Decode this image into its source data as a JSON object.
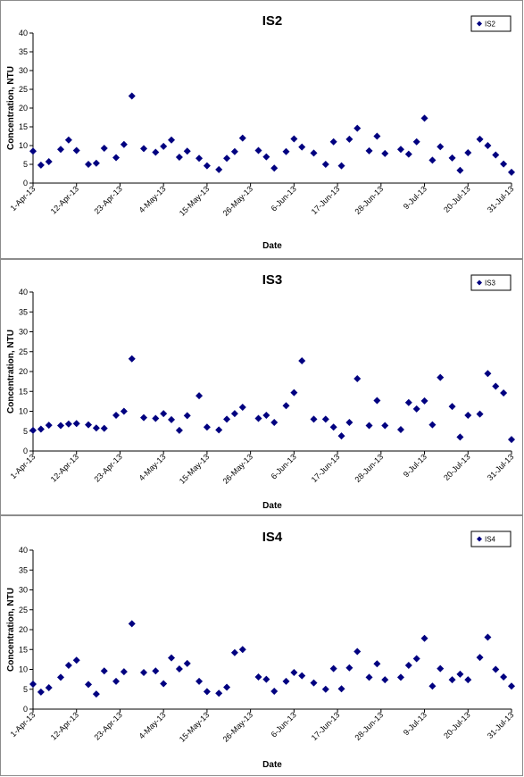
{
  "chart_data": [
    {
      "type": "scatter",
      "title": "IS2",
      "xlabel": "Date",
      "ylabel": "Concentration, NTU",
      "ylim": [
        0,
        40
      ],
      "yticks": [
        "0",
        "5",
        "10",
        "15",
        "20",
        "25",
        "30",
        "35",
        "40"
      ],
      "xticks": [
        "1-Apr-13",
        "12-Apr-13",
        "23-Apr-13",
        "4-May-13",
        "15-May-13",
        "26-May-13",
        "6-Jun-13",
        "17-Jun-13",
        "28-Jun-13",
        "9-Jul-13",
        "20-Jul-13",
        "31-Jul-13"
      ],
      "xlim": [
        "2013-04-01",
        "2013-07-31"
      ],
      "grid": false,
      "legend_position": "top-right",
      "series": [
        {
          "name": "IS2",
          "color": "#000080",
          "points": [
            [
              "2013-04-01",
              8.5
            ],
            [
              "2013-04-03",
              4.8
            ],
            [
              "2013-04-05",
              5.7
            ],
            [
              "2013-04-08",
              9.0
            ],
            [
              "2013-04-10",
              11.5
            ],
            [
              "2013-04-12",
              8.7
            ],
            [
              "2013-04-15",
              5.0
            ],
            [
              "2013-04-17",
              5.3
            ],
            [
              "2013-04-19",
              9.3
            ],
            [
              "2013-04-22",
              6.8
            ],
            [
              "2013-04-24",
              10.3
            ],
            [
              "2013-04-26",
              23.2
            ],
            [
              "2013-04-29",
              9.2
            ],
            [
              "2013-05-02",
              8.2
            ],
            [
              "2013-05-04",
              9.8
            ],
            [
              "2013-05-06",
              11.5
            ],
            [
              "2013-05-08",
              6.9
            ],
            [
              "2013-05-10",
              8.5
            ],
            [
              "2013-05-13",
              6.6
            ],
            [
              "2013-05-15",
              4.6
            ],
            [
              "2013-05-18",
              3.6
            ],
            [
              "2013-05-20",
              6.6
            ],
            [
              "2013-05-22",
              8.4
            ],
            [
              "2013-05-24",
              12.0
            ],
            [
              "2013-05-28",
              8.7
            ],
            [
              "2013-05-30",
              7.0
            ],
            [
              "2013-06-01",
              4.0
            ],
            [
              "2013-06-04",
              8.4
            ],
            [
              "2013-06-06",
              11.8
            ],
            [
              "2013-06-08",
              9.6
            ],
            [
              "2013-06-11",
              8.0
            ],
            [
              "2013-06-14",
              5.0
            ],
            [
              "2013-06-16",
              11.0
            ],
            [
              "2013-06-18",
              4.6
            ],
            [
              "2013-06-20",
              11.7
            ],
            [
              "2013-06-22",
              14.6
            ],
            [
              "2013-06-25",
              8.6
            ],
            [
              "2013-06-27",
              12.5
            ],
            [
              "2013-06-29",
              7.9
            ],
            [
              "2013-07-03",
              9.0
            ],
            [
              "2013-07-05",
              7.7
            ],
            [
              "2013-07-07",
              11.0
            ],
            [
              "2013-07-09",
              17.3
            ],
            [
              "2013-07-11",
              6.1
            ],
            [
              "2013-07-13",
              9.7
            ],
            [
              "2013-07-16",
              6.7
            ],
            [
              "2013-07-18",
              3.4
            ],
            [
              "2013-07-20",
              8.1
            ],
            [
              "2013-07-23",
              11.7
            ],
            [
              "2013-07-25",
              10.0
            ],
            [
              "2013-07-27",
              7.5
            ],
            [
              "2013-07-29",
              5.1
            ],
            [
              "2013-07-31",
              2.9
            ]
          ]
        }
      ]
    },
    {
      "type": "scatter",
      "title": "IS3",
      "xlabel": "Date",
      "ylabel": "Concentration, NTU",
      "ylim": [
        0,
        40
      ],
      "yticks": [
        "0",
        "5",
        "10",
        "15",
        "20",
        "25",
        "30",
        "35",
        "40"
      ],
      "xticks": [
        "1-Apr-13",
        "12-Apr-13",
        "23-Apr-13",
        "4-May-13",
        "15-May-13",
        "26-May-13",
        "6-Jun-13",
        "17-Jun-13",
        "28-Jun-13",
        "9-Jul-13",
        "20-Jul-13",
        "31-Jul-13"
      ],
      "xlim": [
        "2013-04-01",
        "2013-07-31"
      ],
      "grid": false,
      "legend_position": "top-right",
      "series": [
        {
          "name": "IS3",
          "color": "#000080",
          "points": [
            [
              "2013-04-01",
              5.2
            ],
            [
              "2013-04-03",
              5.5
            ],
            [
              "2013-04-05",
              6.5
            ],
            [
              "2013-04-08",
              6.4
            ],
            [
              "2013-04-10",
              6.8
            ],
            [
              "2013-04-12",
              6.9
            ],
            [
              "2013-04-15",
              6.6
            ],
            [
              "2013-04-17",
              5.8
            ],
            [
              "2013-04-19",
              5.7
            ],
            [
              "2013-04-22",
              9.0
            ],
            [
              "2013-04-24",
              10.0
            ],
            [
              "2013-04-26",
              23.2
            ],
            [
              "2013-04-29",
              8.4
            ],
            [
              "2013-05-02",
              8.2
            ],
            [
              "2013-05-04",
              9.4
            ],
            [
              "2013-05-06",
              7.9
            ],
            [
              "2013-05-08",
              5.2
            ],
            [
              "2013-05-10",
              8.9
            ],
            [
              "2013-05-13",
              13.9
            ],
            [
              "2013-05-15",
              6.0
            ],
            [
              "2013-05-18",
              5.3
            ],
            [
              "2013-05-20",
              8.0
            ],
            [
              "2013-05-22",
              9.4
            ],
            [
              "2013-05-24",
              11.0
            ],
            [
              "2013-05-28",
              8.2
            ],
            [
              "2013-05-30",
              9.0
            ],
            [
              "2013-06-01",
              7.2
            ],
            [
              "2013-06-04",
              11.4
            ],
            [
              "2013-06-06",
              14.7
            ],
            [
              "2013-06-08",
              22.7
            ],
            [
              "2013-06-11",
              8.0
            ],
            [
              "2013-06-14",
              8.0
            ],
            [
              "2013-06-16",
              6.0
            ],
            [
              "2013-06-18",
              3.8
            ],
            [
              "2013-06-20",
              7.2
            ],
            [
              "2013-06-22",
              18.2
            ],
            [
              "2013-06-25",
              6.4
            ],
            [
              "2013-06-27",
              12.7
            ],
            [
              "2013-06-29",
              6.4
            ],
            [
              "2013-07-03",
              5.4
            ],
            [
              "2013-07-05",
              12.2
            ],
            [
              "2013-07-07",
              10.6
            ],
            [
              "2013-07-09",
              12.6
            ],
            [
              "2013-07-11",
              6.6
            ],
            [
              "2013-07-13",
              18.5
            ],
            [
              "2013-07-16",
              11.2
            ],
            [
              "2013-07-18",
              3.5
            ],
            [
              "2013-07-20",
              9.0
            ],
            [
              "2013-07-23",
              9.3
            ],
            [
              "2013-07-25",
              19.5
            ],
            [
              "2013-07-27",
              16.3
            ],
            [
              "2013-07-29",
              14.6
            ],
            [
              "2013-07-31",
              2.9
            ]
          ]
        }
      ]
    },
    {
      "type": "scatter",
      "title": "IS4",
      "xlabel": "Date",
      "ylabel": "Concentration, NTU",
      "ylim": [
        0,
        40
      ],
      "yticks": [
        "0",
        "5",
        "10",
        "15",
        "20",
        "25",
        "30",
        "35",
        "40"
      ],
      "xticks": [
        "1-Apr-13",
        "12-Apr-13",
        "23-Apr-13",
        "4-May-13",
        "15-May-13",
        "26-May-13",
        "6-Jun-13",
        "17-Jun-13",
        "28-Jun-13",
        "9-Jul-13",
        "20-Jul-13",
        "31-Jul-13"
      ],
      "xlim": [
        "2013-04-01",
        "2013-07-31"
      ],
      "grid": false,
      "legend_position": "top-right",
      "series": [
        {
          "name": "IS4",
          "color": "#000080",
          "points": [
            [
              "2013-04-01",
              6.3
            ],
            [
              "2013-04-03",
              4.3
            ],
            [
              "2013-04-05",
              5.4
            ],
            [
              "2013-04-08",
              8.0
            ],
            [
              "2013-04-10",
              11.0
            ],
            [
              "2013-04-12",
              12.3
            ],
            [
              "2013-04-15",
              6.2
            ],
            [
              "2013-04-17",
              3.8
            ],
            [
              "2013-04-19",
              9.6
            ],
            [
              "2013-04-22",
              7.0
            ],
            [
              "2013-04-24",
              9.4
            ],
            [
              "2013-04-26",
              21.5
            ],
            [
              "2013-04-29",
              9.2
            ],
            [
              "2013-05-02",
              9.6
            ],
            [
              "2013-05-04",
              6.4
            ],
            [
              "2013-05-06",
              12.9
            ],
            [
              "2013-05-08",
              10.1
            ],
            [
              "2013-05-10",
              11.5
            ],
            [
              "2013-05-13",
              7.0
            ],
            [
              "2013-05-15",
              4.4
            ],
            [
              "2013-05-18",
              4.0
            ],
            [
              "2013-05-20",
              5.5
            ],
            [
              "2013-05-22",
              14.2
            ],
            [
              "2013-05-24",
              15.0
            ],
            [
              "2013-05-28",
              8.1
            ],
            [
              "2013-05-30",
              7.5
            ],
            [
              "2013-06-01",
              4.5
            ],
            [
              "2013-06-04",
              7.0
            ],
            [
              "2013-06-06",
              9.2
            ],
            [
              "2013-06-08",
              8.4
            ],
            [
              "2013-06-11",
              6.6
            ],
            [
              "2013-06-14",
              5.0
            ],
            [
              "2013-06-16",
              10.2
            ],
            [
              "2013-06-18",
              5.1
            ],
            [
              "2013-06-20",
              10.4
            ],
            [
              "2013-06-22",
              14.5
            ],
            [
              "2013-06-25",
              8.0
            ],
            [
              "2013-06-27",
              11.4
            ],
            [
              "2013-06-29",
              7.4
            ],
            [
              "2013-07-03",
              8.0
            ],
            [
              "2013-07-05",
              11.0
            ],
            [
              "2013-07-07",
              12.7
            ],
            [
              "2013-07-09",
              17.8
            ],
            [
              "2013-07-11",
              5.8
            ],
            [
              "2013-07-13",
              10.2
            ],
            [
              "2013-07-16",
              7.4
            ],
            [
              "2013-07-18",
              8.8
            ],
            [
              "2013-07-20",
              7.4
            ],
            [
              "2013-07-23",
              13.0
            ],
            [
              "2013-07-25",
              18.1
            ],
            [
              "2013-07-27",
              10.0
            ],
            [
              "2013-07-29",
              8.1
            ],
            [
              "2013-07-31",
              5.8
            ]
          ]
        }
      ]
    }
  ]
}
